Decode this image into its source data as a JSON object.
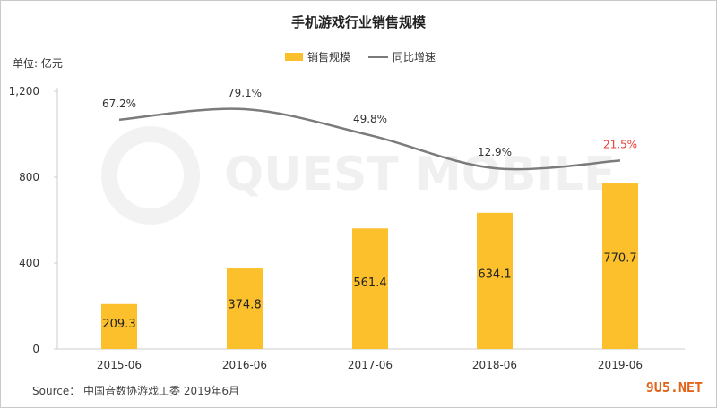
{
  "site_label": "9U5.NET",
  "source": "Source： 中国音数协游戏工委 2019年6月",
  "watermark": "QUEST MOBILE",
  "colors": {
    "bar": "#fcc02c",
    "line": "#7b7b7b",
    "highlight_label": "#e8423a",
    "axis": "#cccccc"
  },
  "chart_data": {
    "type": "bar",
    "title": "手机游戏行业销售规模",
    "ylabel": "单位: 亿元",
    "xlabel": "",
    "categories": [
      "2015-06",
      "2016-06",
      "2017-06",
      "2018-06",
      "2019-06"
    ],
    "ylim": [
      0,
      1200
    ],
    "yticks": [
      0,
      400,
      800,
      1200
    ],
    "ytick_labels": [
      "0",
      "400",
      "800",
      "1,200"
    ],
    "series": [
      {
        "name": "销售规模",
        "type": "bar",
        "values": [
          209.3,
          374.8,
          561.4,
          634.1,
          770.7
        ],
        "labels": [
          "209.3",
          "374.8",
          "561.4",
          "634.1",
          "770.7"
        ]
      },
      {
        "name": "同比增速",
        "type": "line",
        "values": [
          67.2,
          79.1,
          49.8,
          12.9,
          21.5
        ],
        "labels": [
          "67.2%",
          "79.1%",
          "49.8%",
          "12.9%",
          "21.5%"
        ]
      }
    ],
    "grid": false,
    "legend": "top-center"
  }
}
